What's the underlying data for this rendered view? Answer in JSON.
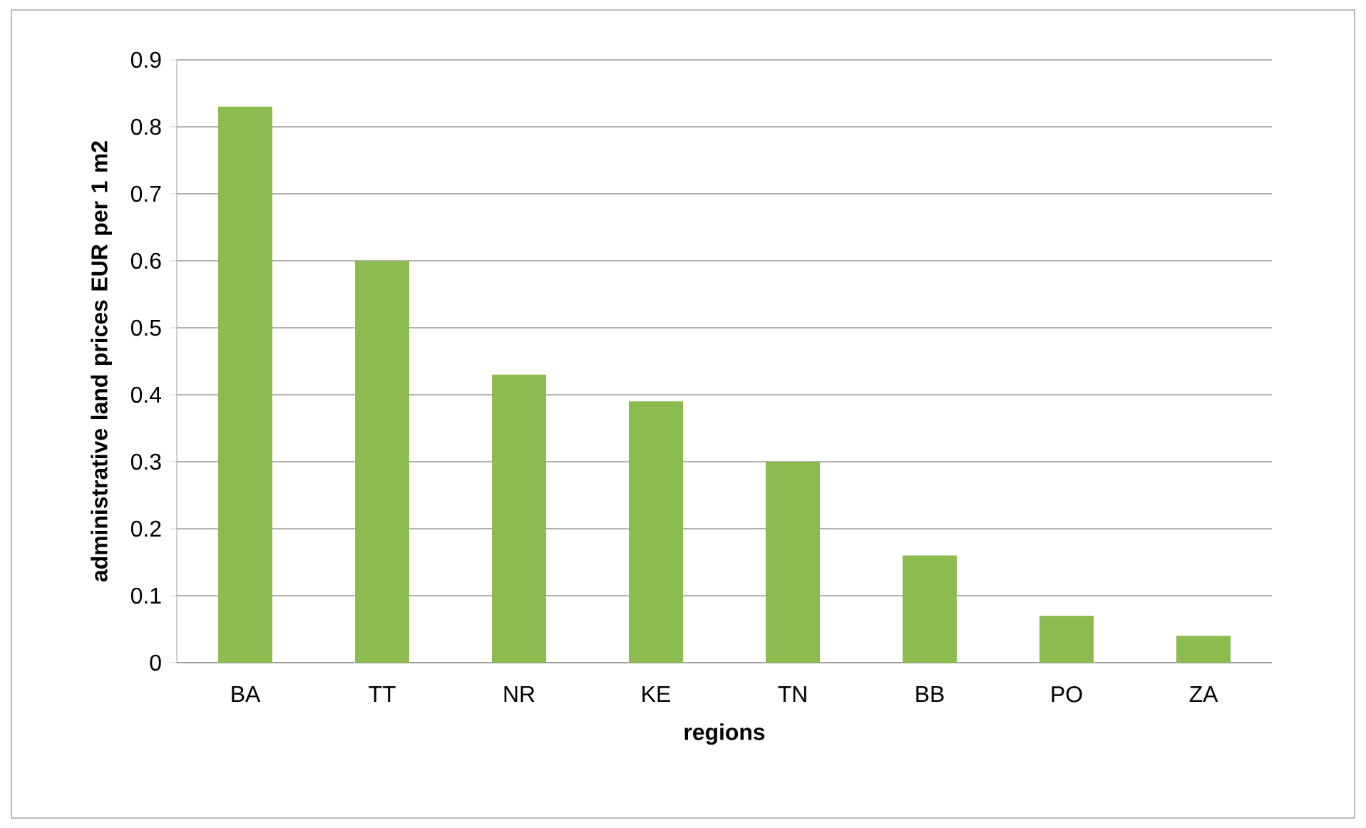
{
  "chart_data": {
    "type": "bar",
    "xlabel": "regions",
    "ylabel": "administrative land prices  EUR per 1 m2",
    "categories": [
      "BA",
      "TT",
      "NR",
      "KE",
      "TN",
      "BB",
      "PO",
      "ZA"
    ],
    "values": [
      0.83,
      0.6,
      0.43,
      0.39,
      0.3,
      0.16,
      0.07,
      0.04
    ],
    "color": "#8cbb4f",
    "ylim": [
      0,
      0.9
    ],
    "yticks": [
      0,
      0.1,
      0.2,
      0.3,
      0.4,
      0.5,
      0.6,
      0.7,
      0.8,
      0.9
    ],
    "grid": "y"
  }
}
